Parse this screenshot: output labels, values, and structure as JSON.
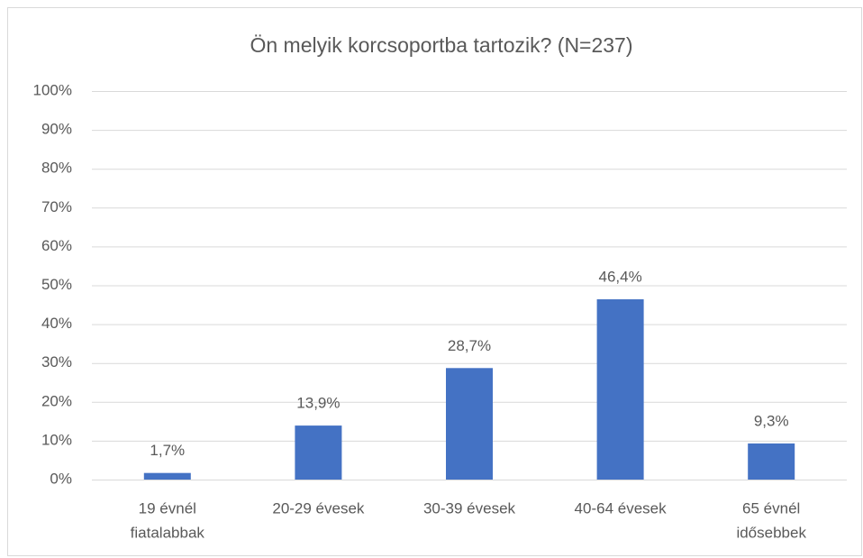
{
  "chart_data": {
    "type": "bar",
    "title": "Ön melyik korcsoportba tartozik? (N=237)",
    "categories": [
      [
        "19 évnél",
        "fiatalabbak"
      ],
      "20-29 évesek",
      "30-39 évesek",
      "40-64 évesek",
      [
        "65 évnél",
        "idősebbek"
      ]
    ],
    "values": [
      1.7,
      13.9,
      28.7,
      46.4,
      9.3
    ],
    "value_labels": [
      "1,7%",
      "13,9%",
      "28,7%",
      "46,4%",
      "9,3%"
    ],
    "color": "#4472c4",
    "ylim": [
      0,
      100
    ],
    "yticks": [
      {
        "value": 0,
        "label": "0%"
      },
      {
        "value": 10,
        "label": "10%"
      },
      {
        "value": 20,
        "label": "20%"
      },
      {
        "value": 30,
        "label": "30%"
      },
      {
        "value": 40,
        "label": "40%"
      },
      {
        "value": 50,
        "label": "50%"
      },
      {
        "value": 60,
        "label": "60%"
      },
      {
        "value": 70,
        "label": "70%"
      },
      {
        "value": 80,
        "label": "80%"
      },
      {
        "value": 90,
        "label": "90%"
      },
      {
        "value": 100,
        "label": "100%"
      }
    ],
    "grid": true
  }
}
